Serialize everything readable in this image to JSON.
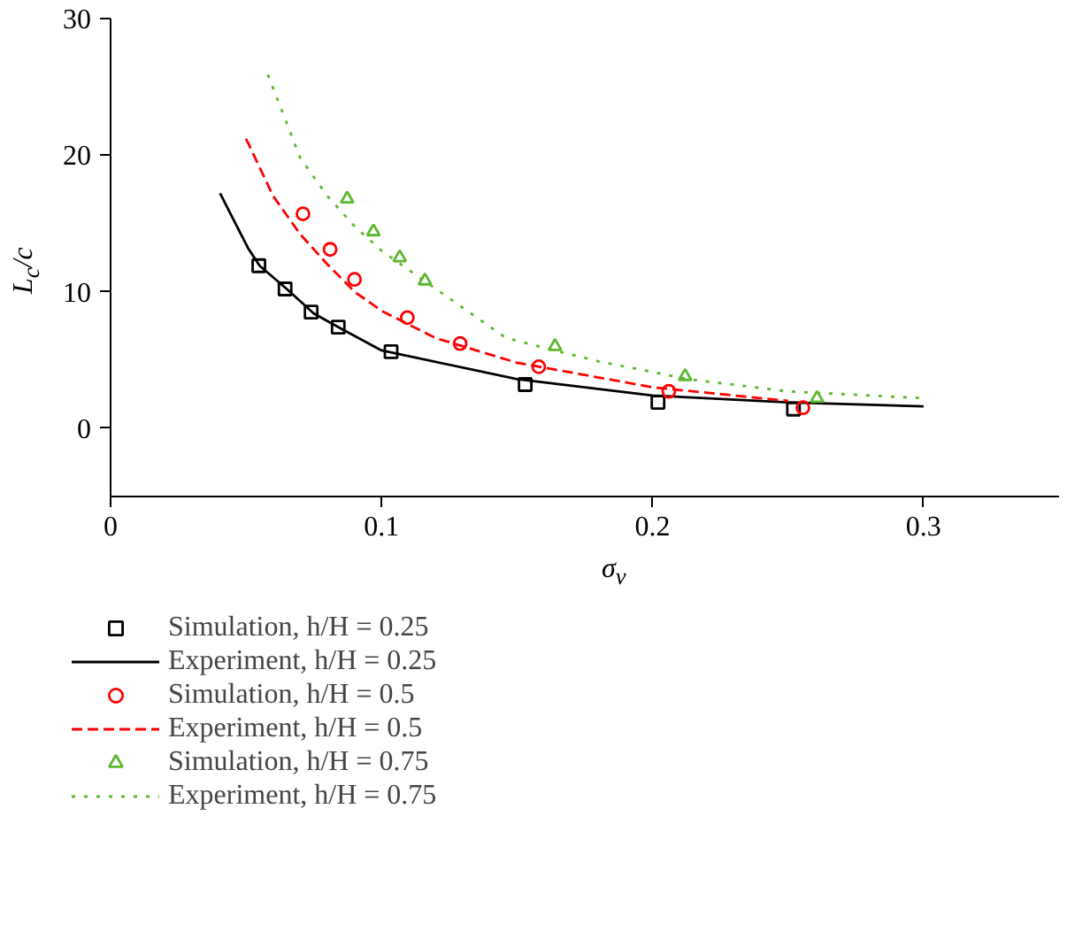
{
  "chart_data": {
    "type": "scatter",
    "xlabel": "σ$_{ν}$",
    "ylabel": "L$_{c}$/c",
    "xlim": [
      0,
      0.35
    ],
    "ylim": [
      -5,
      30
    ],
    "xticks": [
      0,
      0.1,
      0.2,
      0.3
    ],
    "yticks": [
      0,
      10,
      20,
      30
    ],
    "grid": false,
    "legend": "bottom",
    "series": [
      {
        "name": "Simulation, h/H = 0.25",
        "marker": "square",
        "color": "#000000",
        "x": [
          0.0547,
          0.0644,
          0.074,
          0.084,
          0.1035,
          0.153,
          0.202,
          0.252
        ],
        "values": [
          11.9,
          10.2,
          8.5,
          7.4,
          5.6,
          3.2,
          1.9,
          1.4
        ]
      },
      {
        "name": "Experiment, h/H = 0.25",
        "type": "line",
        "marker": "none",
        "line_style": "solid",
        "color": "#000000",
        "x": [
          0.0404,
          0.0507,
          0.055,
          0.065,
          0.075,
          0.085,
          0.1,
          0.15,
          0.2,
          0.25,
          0.3
        ],
        "values": [
          17.2,
          13.2,
          11.9,
          10.2,
          8.4,
          7.3,
          5.7,
          3.6,
          2.4,
          1.9,
          1.6
        ]
      },
      {
        "name": "Simulation, h/H = 0.5",
        "marker": "circle",
        "color": "#ff0000",
        "x": [
          0.071,
          0.081,
          0.09,
          0.1095,
          0.129,
          0.158,
          0.206,
          0.2555
        ],
        "values": [
          15.7,
          13.1,
          10.9,
          8.1,
          6.2,
          4.5,
          2.7,
          1.5
        ]
      },
      {
        "name": "Experiment, h/H = 0.5",
        "type": "line",
        "marker": "none",
        "line_style": "dashed",
        "color": "#ff0000",
        "x": [
          0.05,
          0.06,
          0.07,
          0.08,
          0.09,
          0.1,
          0.12,
          0.15,
          0.2,
          0.25
        ],
        "values": [
          21.2,
          17.0,
          14.2,
          12.0,
          10.0,
          8.6,
          6.6,
          4.8,
          3.0,
          2.0
        ]
      },
      {
        "name": "Simulation, h/H = 0.75",
        "marker": "triangle",
        "color": "#5cb82e",
        "x": [
          0.0873,
          0.097,
          0.1067,
          0.116,
          0.164,
          0.212,
          0.2607
        ],
        "values": [
          16.8,
          14.4,
          12.5,
          10.8,
          6.0,
          3.8,
          2.2
        ]
      },
      {
        "name": "Experiment, h/H = 0.75",
        "type": "line",
        "marker": "none",
        "line_style": "dotted",
        "color": "#5cb82e",
        "x": [
          0.058,
          0.07,
          0.08,
          0.09,
          0.1,
          0.12,
          0.146,
          0.18,
          0.213,
          0.25,
          0.3
        ],
        "values": [
          25.9,
          19.8,
          17.0,
          14.8,
          13.0,
          10.2,
          6.6,
          4.9,
          3.6,
          2.7,
          2.2
        ]
      }
    ]
  }
}
